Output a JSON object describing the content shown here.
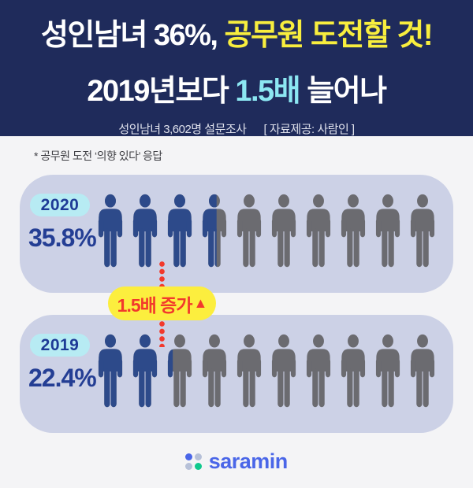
{
  "header": {
    "line1_normal": "성인남녀 36%, ",
    "line1_highlight": "공무원 도전할 것!",
    "line2_part1": "2019년보다 ",
    "line2_highlight": "1.5배",
    "line2_part2": " 늘어나",
    "survey": "성인남녀 3,602명 설문조사",
    "source": "[ 자료제공: 사람인 ]"
  },
  "note": {
    "text": "* 공무원 도전 ‘의향 있다’ 응답"
  },
  "rows": [
    {
      "year": "2020",
      "percent": "35.8%"
    },
    {
      "year": "2019",
      "percent": "22.4%"
    }
  ],
  "badge": {
    "text": "1.5배 증가",
    "arrow": "▲"
  },
  "footer": {
    "logo_text": "saramin"
  },
  "colors": {
    "header_bg": "#1f2b5b",
    "title_white": "#ffffff",
    "title_yellow": "#f8ee3e",
    "title_cyan": "#8ce7f2",
    "subtitle_text": "#dfe1ec",
    "page_bg": "#f4f4f6",
    "note_text": "#3f3f44",
    "panel_bg": "#ccd1e6",
    "year_pill_bg": "#b7ebf3",
    "year_text": "#1d3a96",
    "percent_text": "#243e94",
    "figure_filled": "#2d4a8a",
    "figure_empty": "#6b6b70",
    "badge_bg": "#fcee3e",
    "badge_text": "#f2392c",
    "dot_line": "#f2392c",
    "logo_blue": "#4a66e8",
    "logo_gray": "#b6c0d8",
    "logo_green": "#10c98d"
  },
  "chart_data": {
    "type": "bar",
    "title": "성인남녀 36%, 공무원 도전할 것! 2019년보다 1.5배 늘어나",
    "subtitle": "성인남녀 3,602명 설문조사 [ 자료제공: 사람인 ]",
    "note": "* 공무원 도전 ‘의향 있다’ 응답",
    "categories": [
      "2020",
      "2019"
    ],
    "values": [
      35.8,
      22.4
    ],
    "unit": "%",
    "ylim": [
      0,
      100
    ],
    "annotation": "1.5배 증가▲",
    "pictogram": {
      "icon": "person",
      "icons_per_row": 10,
      "filled_icons": [
        3.58,
        2.24
      ]
    }
  }
}
